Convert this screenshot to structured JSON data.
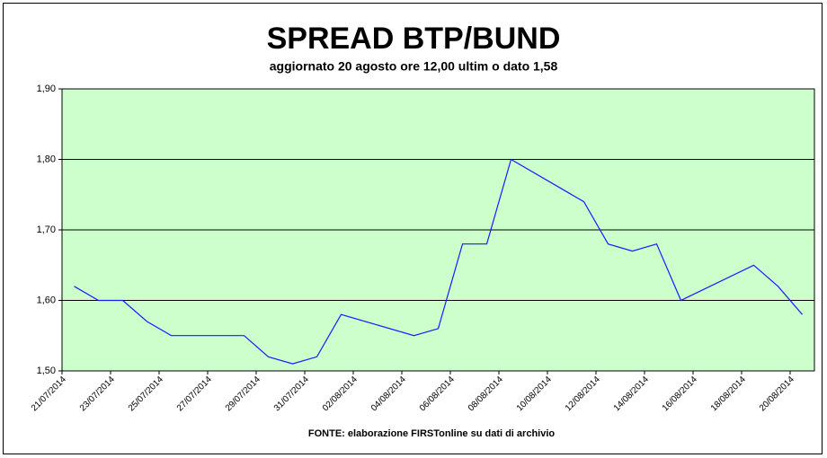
{
  "chart_data": {
    "type": "line",
    "title": "SPREAD BTP/BUND",
    "subtitle": "aggiornato 20 agosto ore 12,00 ultim o dato 1,58",
    "source": "FONTE: elaborazione FIRSTonline su dati di archivio",
    "x": [
      "21/07/2014",
      "22/07/2014",
      "23/07/2014",
      "24/07/2014",
      "25/07/2014",
      "26/07/2014",
      "27/07/2014",
      "28/07/2014",
      "29/07/2014",
      "30/07/2014",
      "31/07/2014",
      "01/08/2014",
      "04/08/2014",
      "05/08/2014",
      "06/08/2014",
      "07/08/2014",
      "08/08/2014",
      "11/08/2014",
      "12/08/2014",
      "13/08/2014",
      "14/08/2014",
      "15/08/2014",
      "18/08/2014",
      "19/08/2014",
      "20/08/2014"
    ],
    "series": [
      {
        "name": "Spread",
        "color": "#1a1aff",
        "values": [
          1.62,
          1.6,
          1.6,
          1.57,
          1.55,
          1.55,
          1.55,
          1.55,
          1.52,
          1.51,
          1.52,
          1.58,
          1.55,
          1.56,
          1.68,
          1.68,
          1.8,
          1.74,
          1.68,
          1.67,
          1.68,
          1.6,
          1.65,
          1.62,
          1.58
        ]
      }
    ],
    "xlim": [
      "21/07/2014",
      "21/08/2014"
    ],
    "xticks": [
      "21/07/2014",
      "23/07/2014",
      "25/07/2014",
      "27/07/2014",
      "29/07/2014",
      "31/07/2014",
      "02/08/2014",
      "04/08/2014",
      "06/08/2014",
      "08/08/2014",
      "10/08/2014",
      "12/08/2014",
      "14/08/2014",
      "16/08/2014",
      "18/08/2014",
      "20/08/2014"
    ],
    "ylim": [
      1.5,
      1.9
    ],
    "yticks": [
      {
        "value": 1.5,
        "label": "1,50"
      },
      {
        "value": 1.6,
        "label": "1,60"
      },
      {
        "value": 1.7,
        "label": "1,70"
      },
      {
        "value": 1.8,
        "label": "1,80"
      },
      {
        "value": 1.9,
        "label": "1,90"
      }
    ],
    "grid": true,
    "plot_background": "#ccffcc"
  }
}
